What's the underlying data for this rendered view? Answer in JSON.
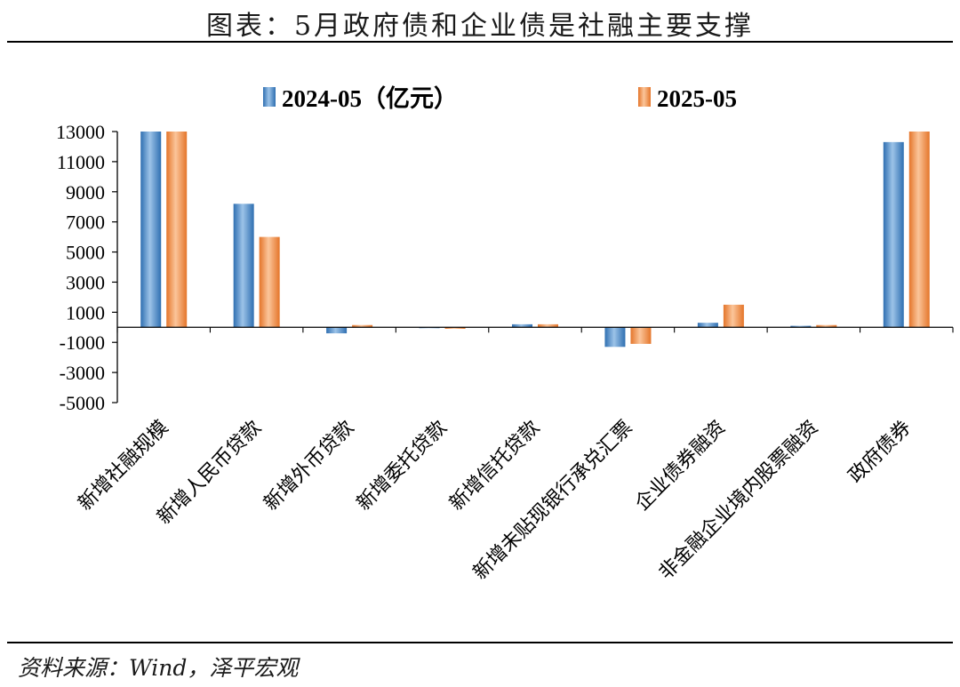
{
  "title": "图表：5月政府债和企业债是社融主要支撑",
  "source": "资料来源：Wind，泽平宏观",
  "chart_data": {
    "type": "bar",
    "categories": [
      "新增社融规模",
      "新增人民币贷款",
      "新增外币贷款",
      "新增委托贷款",
      "新增信托贷款",
      "新增未贴现银行承兑汇票",
      "企业债券融资",
      "非金融企业境内股票融资",
      "政府债券"
    ],
    "series": [
      {
        "name": "2024-05（亿元）",
        "values": [
          13000,
          8200,
          -400,
          0,
          200,
          -1300,
          300,
          100,
          12300
        ],
        "color": "#4a86c5"
      },
      {
        "name": "2025-05",
        "values": [
          13000,
          6000,
          150,
          -100,
          200,
          -1100,
          1500,
          150,
          13000
        ],
        "color": "#f08a3c"
      }
    ],
    "ylim": [
      -5000,
      13000
    ],
    "yticks": [
      13000,
      11000,
      9000,
      7000,
      5000,
      3000,
      1000,
      -1000,
      -3000,
      -5000
    ],
    "ytick_labels": [
      "13000",
      "11000",
      "9000",
      "7000",
      "5000",
      "3000",
      "1000",
      "-1000",
      "-3000",
      "-5000"
    ],
    "legend": "top",
    "grid": false
  }
}
